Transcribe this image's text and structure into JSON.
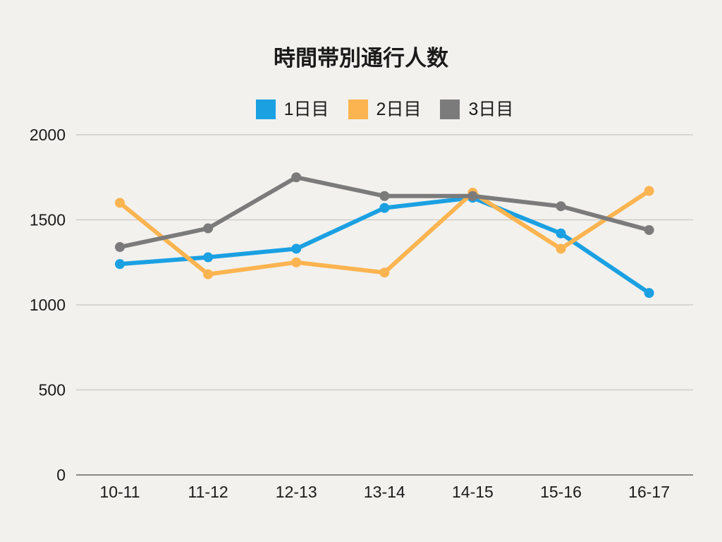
{
  "chart_data": {
    "type": "line",
    "title": "時間帯別通行人数",
    "categories": [
      "10-11",
      "11-12",
      "12-13",
      "13-14",
      "14-15",
      "15-16",
      "16-17"
    ],
    "series": [
      {
        "name": "1日目",
        "color": "#1ba0e2",
        "values": [
          1240,
          1280,
          1330,
          1570,
          1630,
          1420,
          1070
        ]
      },
      {
        "name": "2日目",
        "color": "#fbb450",
        "values": [
          1600,
          1180,
          1250,
          1190,
          1660,
          1330,
          1670
        ]
      },
      {
        "name": "3日目",
        "color": "#7b7b7b",
        "values": [
          1340,
          1450,
          1750,
          1640,
          1640,
          1580,
          1440
        ]
      }
    ],
    "y_ticks": [
      0,
      500,
      1000,
      1500,
      2000
    ],
    "ylim": [
      0,
      2000
    ],
    "xlabel": "",
    "ylabel": "",
    "grid": true,
    "legend_position": "top"
  },
  "colors": {
    "background": "#f2f1ee",
    "gridline": "#cfccc8",
    "axis_line": "#8c8a86",
    "text": "#1a1a1a"
  }
}
